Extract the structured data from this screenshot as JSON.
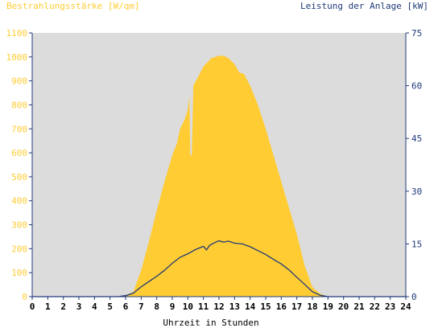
{
  "chart_data": {
    "type": "area",
    "title_left": "Bestrahlungsstärke [W/qm]",
    "title_right": "Leistung der Anlage [kW]",
    "xlabel": "Uhrzeit in Stunden",
    "x_range": [
      0,
      24
    ],
    "x_ticks": [
      "0",
      "1",
      "2",
      "3",
      "4",
      "5",
      "6",
      "7",
      "8",
      "9",
      "10",
      "11",
      "12",
      "13",
      "14",
      "15",
      "16",
      "17",
      "18",
      "19",
      "20",
      "21",
      "22",
      "23",
      "24"
    ],
    "y_left_range": [
      0,
      1100
    ],
    "y_left_ticks": [
      "0",
      "100",
      "200",
      "300",
      "400",
      "500",
      "600",
      "700",
      "800",
      "900",
      "1000",
      "1100"
    ],
    "y_right_range": [
      0,
      75
    ],
    "y_right_ticks": [
      "0",
      "15",
      "30",
      "45",
      "60",
      "75"
    ],
    "grid": false,
    "colors": {
      "plot_background": "#dcdcdc",
      "irradiance": "#ffcc33",
      "power": "#1f3a78",
      "axis": "#1f3a78"
    },
    "series": [
      {
        "axis": "left",
        "type": "area",
        "points": [
          [
            0,
            0
          ],
          [
            5.5,
            0
          ],
          [
            6,
            5
          ],
          [
            6.5,
            20
          ],
          [
            7,
            110
          ],
          [
            7.5,
            230
          ],
          [
            8,
            360
          ],
          [
            8.5,
            480
          ],
          [
            9,
            590
          ],
          [
            9.3,
            640
          ],
          [
            9.5,
            700
          ],
          [
            9.8,
            740
          ],
          [
            10,
            780
          ],
          [
            10.1,
            840
          ],
          [
            10.15,
            590
          ],
          [
            10.25,
            590
          ],
          [
            10.35,
            880
          ],
          [
            10.6,
            910
          ],
          [
            11,
            960
          ],
          [
            11.3,
            980
          ],
          [
            11.5,
            995
          ],
          [
            12,
            1005
          ],
          [
            12.3,
            1005
          ],
          [
            12.6,
            995
          ],
          [
            13,
            970
          ],
          [
            13.3,
            935
          ],
          [
            13.6,
            930
          ],
          [
            14,
            880
          ],
          [
            14.5,
            800
          ],
          [
            15,
            700
          ],
          [
            15.5,
            590
          ],
          [
            16,
            480
          ],
          [
            16.5,
            370
          ],
          [
            17,
            260
          ],
          [
            17.5,
            130
          ],
          [
            18,
            40
          ],
          [
            18.5,
            12
          ],
          [
            19,
            0
          ],
          [
            24,
            0
          ]
        ]
      },
      {
        "axis": "right",
        "type": "line",
        "points": [
          [
            0,
            0
          ],
          [
            5.5,
            0
          ],
          [
            6,
            0.3
          ],
          [
            6.5,
            1
          ],
          [
            7,
            2.8
          ],
          [
            7.5,
            4.3
          ],
          [
            8,
            5.8
          ],
          [
            8.5,
            7.5
          ],
          [
            9,
            9.5
          ],
          [
            9.5,
            11.2
          ],
          [
            10,
            12.2
          ],
          [
            10.5,
            13.4
          ],
          [
            11,
            14.3
          ],
          [
            11.2,
            13.3
          ],
          [
            11.4,
            14.6
          ],
          [
            11.7,
            15.3
          ],
          [
            12,
            15.9
          ],
          [
            12.3,
            15.5
          ],
          [
            12.6,
            15.8
          ],
          [
            13,
            15.2
          ],
          [
            13.5,
            15
          ],
          [
            14,
            14.2
          ],
          [
            14.5,
            13.1
          ],
          [
            15,
            12
          ],
          [
            15.5,
            10.6
          ],
          [
            16,
            9.3
          ],
          [
            16.5,
            7.6
          ],
          [
            17,
            5.5
          ],
          [
            17.5,
            3.5
          ],
          [
            18,
            1.4
          ],
          [
            18.5,
            0.4
          ],
          [
            19,
            0
          ],
          [
            24,
            0
          ]
        ]
      }
    ]
  }
}
